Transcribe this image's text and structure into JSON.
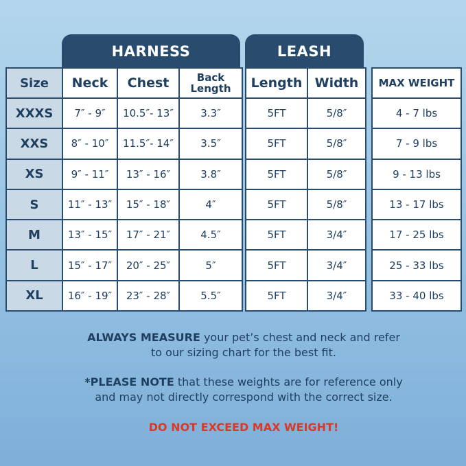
{
  "headers": {
    "harness": "HARNESS",
    "leash": "LEASH"
  },
  "columns": {
    "size": "Size",
    "neck": "Neck",
    "chest": "Chest",
    "back_length": "Back Length",
    "leash_length": "Length",
    "leash_width": "Width",
    "max_weight": "MAX WEIGHT"
  },
  "rows": [
    {
      "size": "XXXS",
      "neck": "7″ - 9″",
      "chest": "10.5″- 13″",
      "back": "3.3″",
      "length": "5FT",
      "width": "5/8″",
      "weight": "4 - 7 lbs"
    },
    {
      "size": "XXS",
      "neck": "8″ - 10″",
      "chest": "11.5″- 14″",
      "back": "3.5″",
      "length": "5FT",
      "width": "5/8″",
      "weight": "7 - 9 lbs"
    },
    {
      "size": "XS",
      "neck": "9″ - 11″",
      "chest": "13″ - 16″",
      "back": "3.8″",
      "length": "5FT",
      "width": "5/8″",
      "weight": "9 - 13 lbs"
    },
    {
      "size": "S",
      "neck": "11″ - 13″",
      "chest": "15″ - 18″",
      "back": "4″",
      "length": "5FT",
      "width": "5/8″",
      "weight": "13 - 17 lbs"
    },
    {
      "size": "M",
      "neck": "13″ - 15″",
      "chest": "17″ - 21″",
      "back": "4.5″",
      "length": "5FT",
      "width": "3/4″",
      "weight": "17 - 25 lbs"
    },
    {
      "size": "L",
      "neck": "15″ - 17″",
      "chest": "20″ - 25″",
      "back": "5″",
      "length": "5FT",
      "width": "3/4″",
      "weight": "25 - 33 lbs"
    },
    {
      "size": "XL",
      "neck": "16″ - 19″",
      "chest": "23″ - 28″",
      "back": "5.5″",
      "length": "5FT",
      "width": "3/4″",
      "weight": "33 - 40 lbs"
    }
  ],
  "notes": {
    "measure_bold": "ALWAYS MEASURE",
    "measure_text": " your pet’s chest and neck and refer",
    "measure_text2": "to our sizing chart for the best fit.",
    "note_bold": "*PLEASE NOTE",
    "note_text": " that these weights are for reference only",
    "note_text2": "and may not directly correspond with the correct size.",
    "warning": "DO NOT EXCEED MAX WEIGHT!"
  },
  "colors": {
    "navy": "#284b6e",
    "warning": "#d83a2a",
    "size_column": "#c9d9e6"
  }
}
